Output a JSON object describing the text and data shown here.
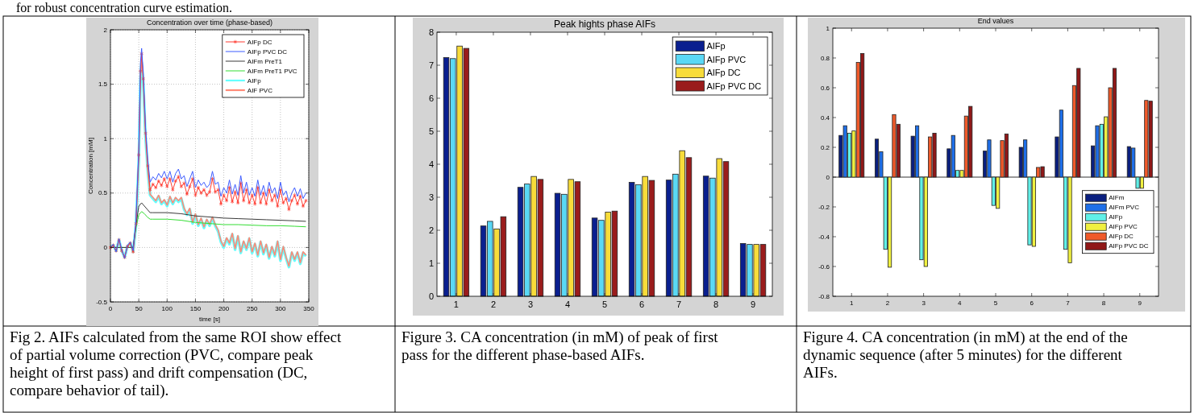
{
  "chart_data": [
    {
      "type": "line",
      "title": "Concentration over time (phase-based)",
      "xlabel": "time [s]",
      "ylabel": "Concentration [mM]",
      "xlim": [
        0,
        350
      ],
      "xticks": [
        0,
        50,
        100,
        150,
        200,
        250,
        300,
        350
      ],
      "ylim": [
        -0.5,
        2
      ],
      "yticks": [
        -0.5,
        0,
        0.5,
        1,
        1.5,
        2
      ],
      "grid": true,
      "legend": "top right",
      "x": [
        0,
        5,
        10,
        15,
        20,
        25,
        30,
        35,
        40,
        45,
        50,
        53,
        55,
        58,
        62,
        66,
        70,
        75,
        80,
        85,
        90,
        95,
        100,
        105,
        110,
        115,
        120,
        125,
        130,
        135,
        140,
        145,
        150,
        155,
        160,
        165,
        170,
        175,
        180,
        185,
        190,
        195,
        200,
        205,
        210,
        215,
        220,
        225,
        230,
        235,
        240,
        245,
        250,
        255,
        260,
        265,
        270,
        275,
        280,
        285,
        290,
        295,
        300,
        305,
        310,
        315,
        320,
        325,
        330,
        335,
        340,
        345
      ],
      "series": [
        {
          "name": "AIFp DC",
          "color": "#ff3b30",
          "marker": "cross",
          "values": [
            0.0,
            0.02,
            -0.03,
            0.07,
            -0.03,
            -0.09,
            0.01,
            0.04,
            -0.04,
            0.22,
            0.85,
            1.62,
            1.78,
            1.55,
            1.05,
            0.75,
            0.53,
            0.58,
            0.55,
            0.61,
            0.57,
            0.63,
            0.56,
            0.63,
            0.53,
            0.61,
            0.65,
            0.56,
            0.59,
            0.49,
            0.56,
            0.63,
            0.48,
            0.55,
            0.5,
            0.53,
            0.48,
            0.51,
            0.63,
            0.51,
            0.53,
            0.4,
            0.48,
            0.43,
            0.55,
            0.42,
            0.51,
            0.41,
            0.59,
            0.43,
            0.53,
            0.41,
            0.48,
            0.4,
            0.55,
            0.41,
            0.5,
            0.4,
            0.53,
            0.43,
            0.48,
            0.38,
            0.53,
            0.41,
            0.45,
            0.35,
            0.43,
            0.48,
            0.4,
            0.47,
            0.38,
            0.43
          ]
        },
        {
          "name": "AIFp PVC DC",
          "color": "#3d5cff",
          "values": [
            0.0,
            0.03,
            -0.04,
            0.08,
            -0.02,
            -0.1,
            0.02,
            0.05,
            -0.03,
            0.25,
            0.9,
            1.7,
            1.83,
            1.6,
            1.1,
            0.8,
            0.6,
            0.65,
            0.62,
            0.68,
            0.64,
            0.7,
            0.63,
            0.7,
            0.6,
            0.68,
            0.72,
            0.63,
            0.66,
            0.56,
            0.63,
            0.7,
            0.55,
            0.62,
            0.57,
            0.6,
            0.55,
            0.58,
            0.7,
            0.58,
            0.6,
            0.47,
            0.55,
            0.5,
            0.62,
            0.49,
            0.58,
            0.48,
            0.66,
            0.5,
            0.6,
            0.48,
            0.55,
            0.47,
            0.62,
            0.48,
            0.57,
            0.47,
            0.6,
            0.5,
            0.55,
            0.45,
            0.6,
            0.48,
            0.52,
            0.42,
            0.5,
            0.55,
            0.47,
            0.54,
            0.45,
            0.5
          ]
        },
        {
          "name": "AIFm PreT1",
          "color": "#3a3a3a",
          "x": [
            0,
            40,
            45,
            50,
            55,
            60,
            65,
            70,
            75,
            100,
            125,
            150,
            175,
            200,
            225,
            250,
            275,
            300,
            325,
            345
          ],
          "values": [
            0,
            0,
            0.2,
            0.38,
            0.41,
            0.38,
            0.35,
            0.32,
            0.32,
            0.32,
            0.31,
            0.29,
            0.28,
            0.27,
            0.265,
            0.26,
            0.255,
            0.25,
            0.245,
            0.24
          ]
        },
        {
          "name": "AIFm PreT1 PVC",
          "color": "#33dd33",
          "x": [
            0,
            40,
            45,
            50,
            55,
            60,
            65,
            70,
            75,
            100,
            125,
            150,
            175,
            200,
            225,
            250,
            275,
            300,
            325,
            345
          ],
          "values": [
            0,
            0,
            0.18,
            0.3,
            0.33,
            0.31,
            0.28,
            0.26,
            0.26,
            0.26,
            0.25,
            0.23,
            0.22,
            0.21,
            0.21,
            0.205,
            0.2,
            0.2,
            0.195,
            0.19
          ]
        },
        {
          "name": "AIFp",
          "color": "#66ffff",
          "values": [
            0.0,
            0.02,
            -0.03,
            0.07,
            -0.03,
            -0.09,
            0.01,
            0.04,
            -0.04,
            0.2,
            0.8,
            1.55,
            1.7,
            1.5,
            1.0,
            0.7,
            0.48,
            0.45,
            0.42,
            0.47,
            0.4,
            0.43,
            0.38,
            0.46,
            0.4,
            0.45,
            0.42,
            0.45,
            0.35,
            0.3,
            0.35,
            0.22,
            0.3,
            0.2,
            0.26,
            0.18,
            0.25,
            0.2,
            0.27,
            0.2,
            0.15,
            0.05,
            0.0,
            0.08,
            0.03,
            0.12,
            -0.02,
            0.1,
            -0.05,
            0.05,
            -0.02,
            0.08,
            -0.05,
            0.03,
            -0.08,
            0.05,
            -0.06,
            0.02,
            -0.1,
            0.0,
            -0.08,
            0.05,
            -0.12,
            0.0,
            -0.1,
            -0.18,
            -0.05,
            -0.12,
            -0.05,
            -0.15,
            -0.05,
            -0.08
          ]
        },
        {
          "name": "AIF PVC",
          "color": "#ff8a78",
          "values": [
            0.0,
            0.02,
            -0.03,
            0.07,
            -0.03,
            -0.09,
            0.01,
            0.04,
            -0.04,
            0.21,
            0.82,
            1.58,
            1.73,
            1.52,
            1.02,
            0.71,
            0.49,
            0.46,
            0.43,
            0.48,
            0.41,
            0.44,
            0.39,
            0.47,
            0.41,
            0.46,
            0.43,
            0.46,
            0.36,
            0.31,
            0.36,
            0.23,
            0.31,
            0.21,
            0.27,
            0.19,
            0.26,
            0.21,
            0.28,
            0.21,
            0.16,
            0.06,
            0.01,
            0.09,
            0.04,
            0.13,
            -0.01,
            0.11,
            -0.04,
            0.06,
            -0.01,
            0.09,
            -0.04,
            0.04,
            -0.07,
            0.06,
            -0.05,
            0.03,
            -0.09,
            0.01,
            -0.07,
            0.06,
            -0.11,
            0.01,
            -0.09,
            -0.17,
            -0.04,
            -0.11,
            -0.04,
            -0.14,
            -0.04,
            -0.07
          ]
        }
      ],
      "annotations": [
        "Fig 2. AIFs calculated from the same ROI show effect of partial volume correction (PVC, compare peak height of first pass) and drift compensation (DC, compare behavior of tail).",
        "for robust concentration curve estimation."
      ]
    },
    {
      "type": "bar",
      "title": "Peak hights phase AIFs",
      "categories": [
        "1",
        "2",
        "3",
        "4",
        "5",
        "6",
        "7",
        "8",
        "9"
      ],
      "ylim": [
        0,
        8
      ],
      "yticks": [
        0,
        1,
        2,
        3,
        4,
        5,
        6,
        7,
        8
      ],
      "legend": "top right",
      "series": [
        {
          "name": "AIFp",
          "color": "#0a1f8f",
          "values": [
            7.23,
            2.13,
            3.3,
            3.12,
            2.37,
            3.45,
            3.52,
            3.64,
            1.6
          ]
        },
        {
          "name": "AIFp PVC",
          "color": "#5ad8f5",
          "values": [
            7.2,
            2.27,
            3.4,
            3.09,
            2.3,
            3.38,
            3.7,
            3.58,
            1.57
          ]
        },
        {
          "name": "AIFp DC",
          "color": "#f8dc3a",
          "values": [
            7.58,
            2.04,
            3.63,
            3.54,
            2.55,
            3.63,
            4.41,
            4.17,
            1.57
          ]
        },
        {
          "name": "AIFp PVC DC",
          "color": "#9a1c1c",
          "values": [
            7.51,
            2.41,
            3.54,
            3.47,
            2.58,
            3.51,
            4.2,
            4.08,
            1.57
          ]
        }
      ],
      "annotations": [
        "Figure 3. CA concentration (in mM) of peak of first pass for the different phase-based AIFs."
      ]
    },
    {
      "type": "bar",
      "title": "End values",
      "categories": [
        "1",
        "2",
        "3",
        "4",
        "5",
        "6",
        "7",
        "8",
        "9"
      ],
      "ylim": [
        -0.8,
        1
      ],
      "yticks": [
        -0.8,
        -0.6,
        -0.4,
        -0.2,
        0,
        0.2,
        0.4,
        0.6,
        0.8,
        1
      ],
      "legend": "bottom right",
      "series": [
        {
          "name": "AIFm",
          "color": "#0a1f7f",
          "values": [
            0.28,
            0.255,
            0.275,
            0.19,
            0.175,
            0.2,
            0.27,
            0.21,
            0.205
          ]
        },
        {
          "name": "AIFm PVC",
          "color": "#1f6fe8",
          "values": [
            0.345,
            0.17,
            0.345,
            0.28,
            0.25,
            0.25,
            0.45,
            0.345,
            0.195
          ]
        },
        {
          "name": "AIFp",
          "color": "#60f0e8",
          "values": [
            0.295,
            -0.485,
            -0.555,
            0.045,
            -0.19,
            -0.455,
            -0.485,
            0.355,
            -0.075
          ]
        },
        {
          "name": "AIFp PVC",
          "color": "#f0f040",
          "values": [
            0.31,
            -0.605,
            -0.6,
            0.045,
            -0.21,
            -0.465,
            -0.575,
            0.405,
            -0.075
          ]
        },
        {
          "name": "AIFp DC",
          "color": "#f05a2a",
          "values": [
            0.77,
            0.42,
            0.27,
            0.41,
            0.245,
            0.065,
            0.615,
            0.6,
            0.515
          ]
        },
        {
          "name": "AIFp PVC DC",
          "color": "#901818",
          "values": [
            0.83,
            0.355,
            0.295,
            0.475,
            0.29,
            0.07,
            0.73,
            0.73,
            0.51
          ]
        }
      ],
      "annotations": [
        "Figure 4. CA concentration (in mM) at the end of the dynamic sequence (after 5 minutes) for the different AIFs."
      ]
    }
  ]
}
